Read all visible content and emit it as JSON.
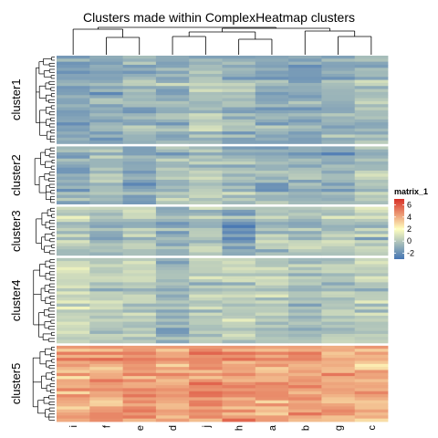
{
  "chart_data": {
    "type": "heatmap",
    "title": "Clusters made within ComplexHeatmap clusters",
    "columns": [
      "i",
      "f",
      "e",
      "d",
      "j",
      "h",
      "a",
      "b",
      "g",
      "c"
    ],
    "row_clusters": [
      {
        "name": "cluster1",
        "n_rows": 29,
        "base": -0.6,
        "spread": 1.1
      },
      {
        "name": "cluster2",
        "n_rows": 19,
        "base": -0.4,
        "spread": 1.2
      },
      {
        "name": "cluster3",
        "n_rows": 16,
        "base": -0.3,
        "spread": 1.3
      },
      {
        "name": "cluster4",
        "n_rows": 28,
        "base": 0.2,
        "spread": 1.1
      },
      {
        "name": "cluster5",
        "n_rows": 25,
        "base": 3.8,
        "spread": 1.3
      }
    ],
    "column_offsets": {
      "cluster1": [
        -0.9,
        -0.5,
        -0.2,
        -0.3,
        0.3,
        0.1,
        -0.4,
        -0.5,
        -0.2,
        0.1
      ],
      "cluster2": [
        -0.5,
        0.1,
        -0.9,
        0.0,
        0.1,
        -0.1,
        -0.5,
        -0.3,
        -0.6,
        0.2
      ],
      "cluster3": [
        0.1,
        -0.2,
        0.1,
        -0.8,
        0.2,
        -1.2,
        0.0,
        -0.2,
        0.3,
        0.3
      ],
      "cluster4": [
        0.3,
        -0.2,
        0.1,
        -1.0,
        0.0,
        0.1,
        -0.2,
        -0.6,
        -0.3,
        -0.1
      ],
      "cluster5": [
        0.2,
        0.5,
        0.6,
        0.3,
        0.8,
        0.7,
        0.3,
        0.5,
        0.2,
        0.1
      ]
    },
    "legend": {
      "title": "matrix_1",
      "ticks": [
        6,
        4,
        2,
        0,
        -2
      ],
      "range": [
        -3,
        7
      ],
      "colors": {
        "low": "#4575b4",
        "mid": "#ffffbf",
        "high": "#d73027"
      },
      "placement": "right"
    }
  }
}
